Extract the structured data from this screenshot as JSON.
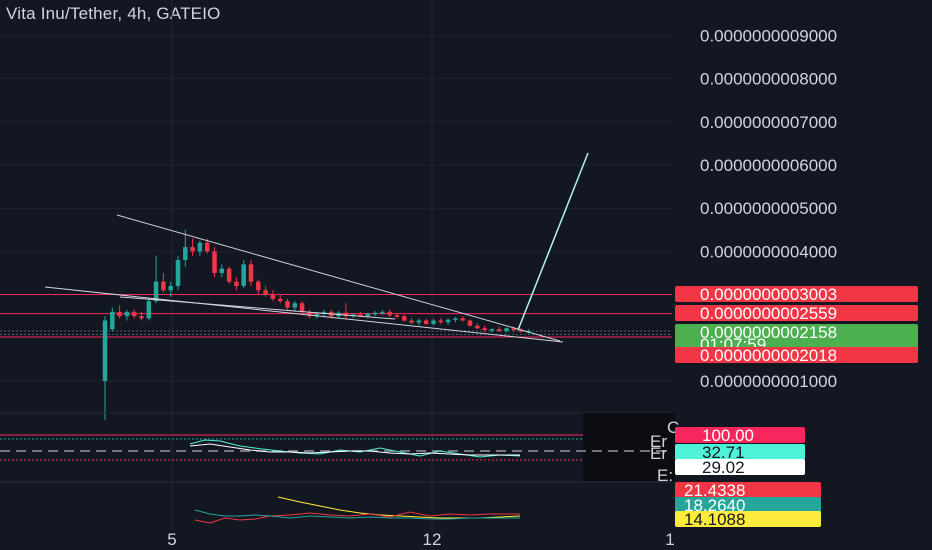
{
  "chart_data": {
    "type": "candlestick",
    "title": "Vita Inu/Tether, 4h, GATEIO",
    "price_axis": {
      "ticks": [
        {
          "value": 9e-10,
          "label": "0.0000000009000"
        },
        {
          "value": 8e-10,
          "label": "0.0000000008000"
        },
        {
          "value": 7e-10,
          "label": "0.0000000007000"
        },
        {
          "value": 6e-10,
          "label": "0.0000000006000"
        },
        {
          "value": 5e-10,
          "label": "0.0000000005000"
        },
        {
          "value": 4e-10,
          "label": "0.0000000004000"
        },
        {
          "value": 1e-10,
          "label": "0.0000000001000"
        }
      ]
    },
    "price_tags": [
      {
        "label": "0.0000000003003",
        "value": 3.003e-10,
        "color": "#f23645"
      },
      {
        "label": "0.0000000002559",
        "value": 2.559e-10,
        "color": "#f23645"
      },
      {
        "label": "0.0000000002158",
        "sublabel": "01:07:59",
        "value": 2.158e-10,
        "color": "#4caf50"
      },
      {
        "label": "0.0000000002018",
        "value": 2.018e-10,
        "color": "#f23645"
      }
    ],
    "x_axis": {
      "ticks": [
        {
          "label": "5"
        },
        {
          "label": "12"
        },
        {
          "label": "1"
        }
      ]
    },
    "candles": [
      {
        "o": 1e-10,
        "h": 2.5e-10,
        "l": 1e-11,
        "c": 2.4e-10,
        "dir": "up"
      },
      {
        "o": 2.2e-10,
        "h": 2.7e-10,
        "l": 2.15e-10,
        "c": 2.6e-10,
        "dir": "up"
      },
      {
        "o": 2.6e-10,
        "h": 2.75e-10,
        "l": 2.45e-10,
        "c": 2.5e-10,
        "dir": "down"
      },
      {
        "o": 2.5e-10,
        "h": 2.65e-10,
        "l": 2.4e-10,
        "c": 2.6e-10,
        "dir": "up"
      },
      {
        "o": 2.6e-10,
        "h": 2.65e-10,
        "l": 2.45e-10,
        "c": 2.5e-10,
        "dir": "down"
      },
      {
        "o": 2.5e-10,
        "h": 2.6e-10,
        "l": 2.4e-10,
        "c": 2.45e-10,
        "dir": "down"
      },
      {
        "o": 2.45e-10,
        "h": 2.9e-10,
        "l": 2.4e-10,
        "c": 2.85e-10,
        "dir": "up"
      },
      {
        "o": 2.85e-10,
        "h": 3.9e-10,
        "l": 2.8e-10,
        "c": 3.3e-10,
        "dir": "up"
      },
      {
        "o": 3.3e-10,
        "h": 3.5e-10,
        "l": 3.05e-10,
        "c": 3.1e-10,
        "dir": "down"
      },
      {
        "o": 3.1e-10,
        "h": 3.3e-10,
        "l": 2.95e-10,
        "c": 3.2e-10,
        "dir": "up"
      },
      {
        "o": 3.2e-10,
        "h": 3.9e-10,
        "l": 3.1e-10,
        "c": 3.8e-10,
        "dir": "up"
      },
      {
        "o": 3.8e-10,
        "h": 4.5e-10,
        "l": 3.65e-10,
        "c": 4.1e-10,
        "dir": "up"
      },
      {
        "o": 4.1e-10,
        "h": 4.3e-10,
        "l": 3.9e-10,
        "c": 4e-10,
        "dir": "down"
      },
      {
        "o": 4e-10,
        "h": 4.25e-10,
        "l": 3.9e-10,
        "c": 4.2e-10,
        "dir": "up"
      },
      {
        "o": 4.2e-10,
        "h": 4.3e-10,
        "l": 3.95e-10,
        "c": 4e-10,
        "dir": "down"
      },
      {
        "o": 4e-10,
        "h": 4.1e-10,
        "l": 3.4e-10,
        "c": 3.5e-10,
        "dir": "down"
      },
      {
        "o": 3.5e-10,
        "h": 3.7e-10,
        "l": 3.4e-10,
        "c": 3.6e-10,
        "dir": "up"
      },
      {
        "o": 3.6e-10,
        "h": 3.65e-10,
        "l": 3.25e-10,
        "c": 3.3e-10,
        "dir": "down"
      },
      {
        "o": 3.3e-10,
        "h": 3.4e-10,
        "l": 3.1e-10,
        "c": 3.2e-10,
        "dir": "down"
      },
      {
        "o": 3.2e-10,
        "h": 3.8e-10,
        "l": 3.15e-10,
        "c": 3.7e-10,
        "dir": "up"
      },
      {
        "o": 3.7e-10,
        "h": 3.8e-10,
        "l": 3.2e-10,
        "c": 3.3e-10,
        "dir": "down"
      },
      {
        "o": 3.3e-10,
        "h": 3.35e-10,
        "l": 3e-10,
        "c": 3.1e-10,
        "dir": "down"
      },
      {
        "o": 3.1e-10,
        "h": 3.2e-10,
        "l": 2.95e-10,
        "c": 3e-10,
        "dir": "down"
      },
      {
        "o": 3e-10,
        "h": 3.1e-10,
        "l": 2.85e-10,
        "c": 2.9e-10,
        "dir": "down"
      },
      {
        "o": 2.9e-10,
        "h": 3e-10,
        "l": 2.8e-10,
        "c": 2.85e-10,
        "dir": "down"
      },
      {
        "o": 2.85e-10,
        "h": 2.9e-10,
        "l": 2.65e-10,
        "c": 2.7e-10,
        "dir": "down"
      },
      {
        "o": 2.7e-10,
        "h": 2.85e-10,
        "l": 2.6e-10,
        "c": 2.8e-10,
        "dir": "up"
      },
      {
        "o": 2.8e-10,
        "h": 2.85e-10,
        "l": 2.55e-10,
        "c": 2.6e-10,
        "dir": "down"
      },
      {
        "o": 2.6e-10,
        "h": 2.65e-10,
        "l": 2.45e-10,
        "c": 2.5e-10,
        "dir": "down"
      },
      {
        "o": 2.5e-10,
        "h": 2.6e-10,
        "l": 2.45e-10,
        "c": 2.55e-10,
        "dir": "up"
      },
      {
        "o": 2.55e-10,
        "h": 2.65e-10,
        "l": 2.5e-10,
        "c": 2.6e-10,
        "dir": "up"
      },
      {
        "o": 2.6e-10,
        "h": 2.65e-10,
        "l": 2.45e-10,
        "c": 2.5e-10,
        "dir": "down"
      },
      {
        "o": 2.5e-10,
        "h": 2.62e-10,
        "l": 2.45e-10,
        "c": 2.58e-10,
        "dir": "up"
      },
      {
        "o": 2.58e-10,
        "h": 2.8e-10,
        "l": 2.45e-10,
        "c": 2.5e-10,
        "dir": "down"
      },
      {
        "o": 2.5e-10,
        "h": 2.56e-10,
        "l": 2.46e-10,
        "c": 2.54e-10,
        "dir": "up"
      },
      {
        "o": 2.54e-10,
        "h": 2.6e-10,
        "l": 2.48e-10,
        "c": 2.5e-10,
        "dir": "down"
      },
      {
        "o": 2.5e-10,
        "h": 2.58e-10,
        "l": 2.46e-10,
        "c": 2.56e-10,
        "dir": "up"
      },
      {
        "o": 2.56e-10,
        "h": 2.62e-10,
        "l": 2.5e-10,
        "c": 2.58e-10,
        "dir": "up"
      },
      {
        "o": 2.58e-10,
        "h": 2.64e-10,
        "l": 2.52e-10,
        "c": 2.6e-10,
        "dir": "up"
      },
      {
        "o": 2.6e-10,
        "h": 2.65e-10,
        "l": 2.48e-10,
        "c": 2.52e-10,
        "dir": "down"
      },
      {
        "o": 2.52e-10,
        "h": 2.58e-10,
        "l": 2.45e-10,
        "c": 2.5e-10,
        "dir": "down"
      },
      {
        "o": 2.5e-10,
        "h": 2.54e-10,
        "l": 2.38e-10,
        "c": 2.4e-10,
        "dir": "down"
      },
      {
        "o": 2.4e-10,
        "h": 2.46e-10,
        "l": 2.32e-10,
        "c": 2.35e-10,
        "dir": "down"
      },
      {
        "o": 2.35e-10,
        "h": 2.45e-10,
        "l": 2.28e-10,
        "c": 2.4e-10,
        "dir": "up"
      },
      {
        "o": 2.4e-10,
        "h": 2.45e-10,
        "l": 2.3e-10,
        "c": 2.32e-10,
        "dir": "down"
      },
      {
        "o": 2.32e-10,
        "h": 2.44e-10,
        "l": 2.28e-10,
        "c": 2.4e-10,
        "dir": "up"
      },
      {
        "o": 2.4e-10,
        "h": 2.46e-10,
        "l": 2.32e-10,
        "c": 2.36e-10,
        "dir": "down"
      },
      {
        "o": 2.36e-10,
        "h": 2.44e-10,
        "l": 2.3e-10,
        "c": 2.42e-10,
        "dir": "up"
      },
      {
        "o": 2.42e-10,
        "h": 2.48e-10,
        "l": 2.36e-10,
        "c": 2.45e-10,
        "dir": "up"
      },
      {
        "o": 2.45e-10,
        "h": 2.5e-10,
        "l": 2.38e-10,
        "c": 2.4e-10,
        "dir": "down"
      },
      {
        "o": 2.4e-10,
        "h": 2.42e-10,
        "l": 2.26e-10,
        "c": 2.28e-10,
        "dir": "down"
      },
      {
        "o": 2.28e-10,
        "h": 2.34e-10,
        "l": 2.2e-10,
        "c": 2.22e-10,
        "dir": "down"
      },
      {
        "o": 2.22e-10,
        "h": 2.28e-10,
        "l": 2.14e-10,
        "c": 2.18e-10,
        "dir": "down"
      },
      {
        "o": 2.18e-10,
        "h": 2.22e-10,
        "l": 2.12e-10,
        "c": 2.2e-10,
        "dir": "up"
      },
      {
        "o": 2.2e-10,
        "h": 2.26e-10,
        "l": 2.14e-10,
        "c": 2.16e-10,
        "dir": "down"
      },
      {
        "o": 2.16e-10,
        "h": 2.24e-10,
        "l": 2.12e-10,
        "c": 2.22e-10,
        "dir": "up"
      },
      {
        "o": 2.22e-10,
        "h": 2.26e-10,
        "l": 2.14e-10,
        "c": 2.18e-10,
        "dir": "down"
      },
      {
        "o": 2.18e-10,
        "h": 2.22e-10,
        "l": 2.12e-10,
        "c": 2.14e-10,
        "dir": "down"
      },
      {
        "o": 2.14e-10,
        "h": 2.2e-10,
        "l": 2.1e-10,
        "c": 2.16e-10,
        "dir": "up"
      }
    ],
    "oscillator_tags": [
      {
        "label": "100.00",
        "color": "#f7275e",
        "text_color": "#ffffff"
      },
      {
        "label": "32.71",
        "color": "#4ef2d8",
        "text_color": "#131722"
      },
      {
        "label": "29.02",
        "color": "#ffffff",
        "text_color": "#131722"
      }
    ],
    "dmi_tags": [
      {
        "label": "21.4338",
        "color": "#f23645",
        "text_color": "#ffffff"
      },
      {
        "label": "18.2640",
        "color": "#26a69a",
        "text_color": "#ffffff"
      },
      {
        "label": "14.1088",
        "color": "#ffeb3b",
        "text_color": "#131722"
      }
    ],
    "grid": true,
    "colors": {
      "background": "#131722",
      "up": "#26a69a",
      "down": "#f23645",
      "trendline": "#d1d4dc",
      "projection": "#b2f5ea",
      "level_line": "#f7275e"
    }
  }
}
